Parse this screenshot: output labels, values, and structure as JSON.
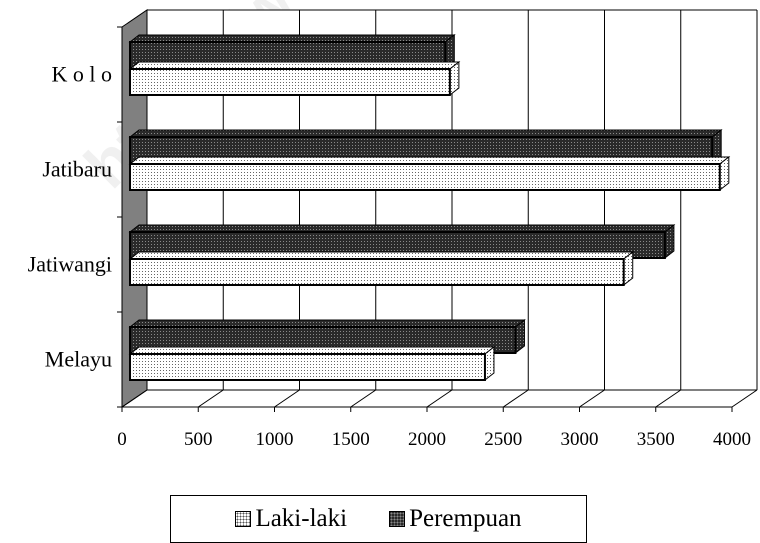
{
  "chart_data": {
    "type": "bar",
    "orientation": "horizontal",
    "three_d": true,
    "categories": [
      "K o l o",
      "Jatibaru",
      "Jatiwangi",
      "Melayu"
    ],
    "series": [
      {
        "name": "Laki-laki",
        "values": [
          2150,
          3920,
          3290,
          2380
        ],
        "pattern": "light-dots"
      },
      {
        "name": "Perempuan",
        "values": [
          2120,
          3870,
          3560,
          2580
        ],
        "pattern": "dark-dots"
      }
    ],
    "xlim": [
      0,
      4000
    ],
    "xticks": [
      "0",
      "500",
      "1000",
      "1500",
      "2000",
      "2500",
      "3000",
      "3500",
      "4000"
    ],
    "grid": true,
    "legend_position": "bottom",
    "colors": {
      "light": "#ffffff",
      "dark": "#2a2a2a",
      "wall": "#808080"
    }
  },
  "watermark": "https://www.bps.go.id"
}
